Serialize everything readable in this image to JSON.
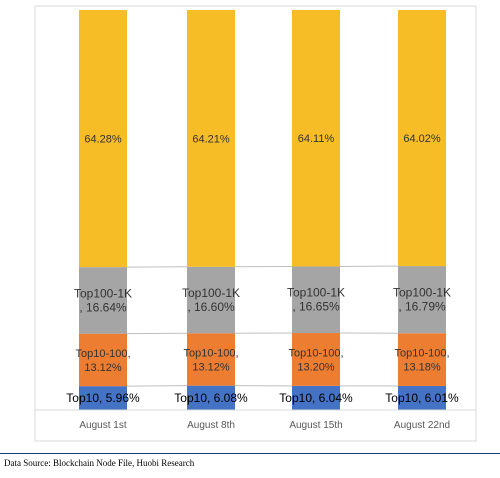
{
  "chart_data": {
    "type": "bar",
    "stacked": true,
    "normalized": true,
    "categories": [
      "August 1st",
      "August 8th",
      "August 15th",
      "August 22nd"
    ],
    "series": [
      {
        "name": "Top10",
        "values": [
          5.96,
          6.08,
          6.04,
          6.01
        ],
        "color": "#4472c4",
        "labels": [
          "Top10, 5.96%",
          "Top10, 6.08%",
          "Top10, 6.04%",
          "Top10, 6.01%"
        ]
      },
      {
        "name": "Top10-100",
        "values": [
          13.12,
          13.12,
          13.2,
          13.18
        ],
        "color": "#ed7d31",
        "labels": [
          [
            "Top10-100,",
            "13.12%"
          ],
          [
            "Top10-100,",
            "13.12%"
          ],
          [
            "Top10-100,",
            "13.20%"
          ],
          [
            "Top10-100,",
            "13.18%"
          ]
        ]
      },
      {
        "name": "Top100-1K",
        "values": [
          16.64,
          16.6,
          16.65,
          16.79
        ],
        "color": "#a5a5a5",
        "labels": [
          [
            "Top100-1K",
            ", 16.64%"
          ],
          [
            "Top100-1K",
            ", 16.60%"
          ],
          [
            "Top100-1K",
            ", 16.65%"
          ],
          [
            "Top100-1K",
            ", 16.79%"
          ]
        ]
      },
      {
        "name": "",
        "values": [
          64.28,
          64.21,
          64.11,
          64.02
        ],
        "color": "#f6bd27",
        "labels": [
          "64.28%",
          "64.21%",
          "64.11%",
          "64.02%"
        ]
      }
    ],
    "ylim": [
      0,
      100
    ],
    "grid": false,
    "legend": false
  },
  "footer": {
    "source": "Data Source: Blockchain Node File, Huobi Research"
  }
}
